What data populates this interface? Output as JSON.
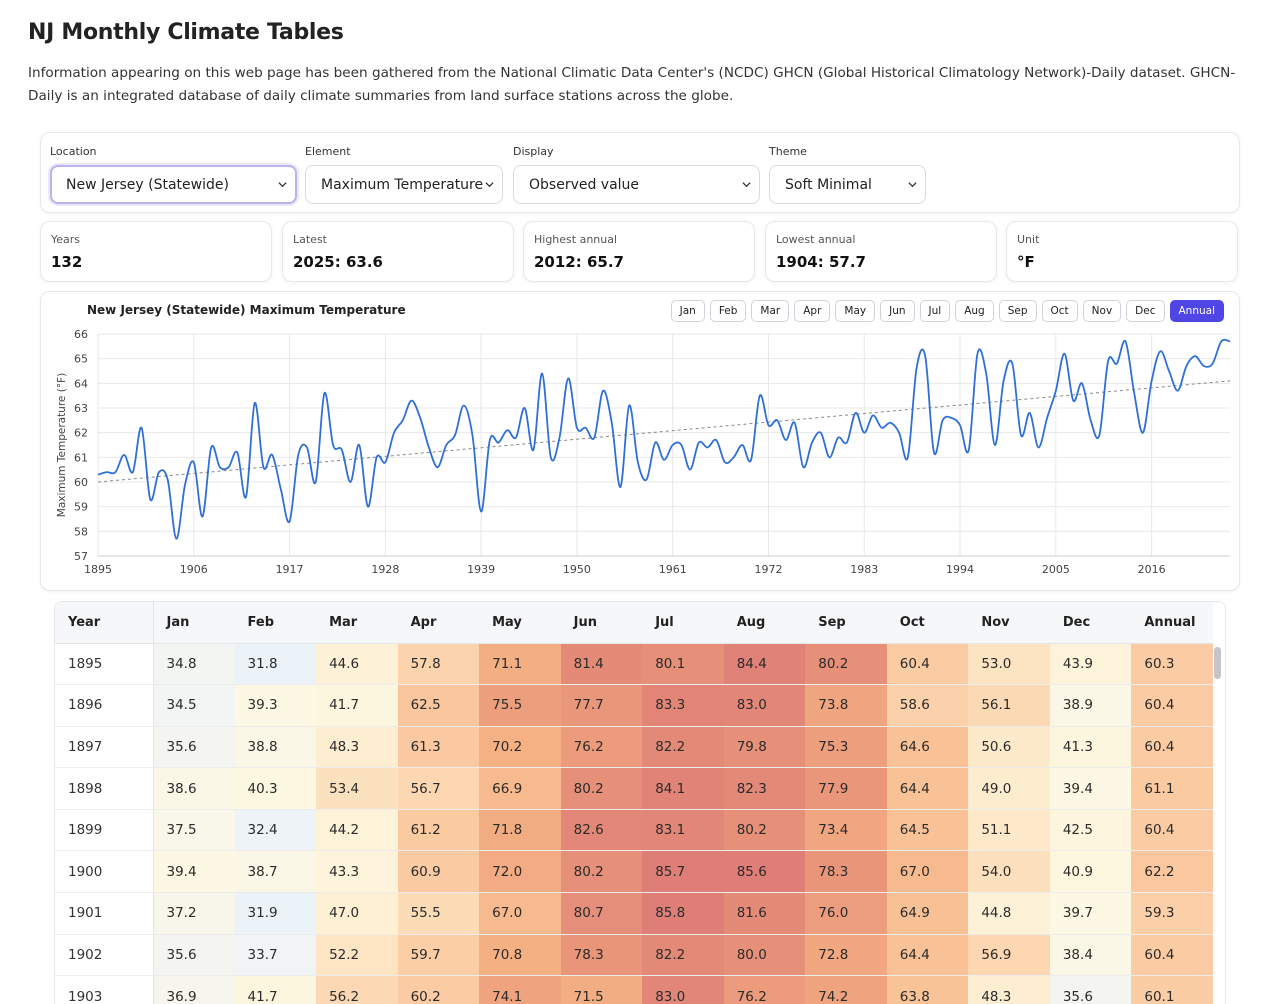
{
  "page": {
    "title": "NJ Monthly Climate Tables",
    "intro": "Information appearing on this web page has been gathered from the National Climatic Data Center's (NCDC) GHCN (Global Historical Climatology Network)-Daily dataset. GHCN-Daily is an integrated database of daily climate summaries from land surface stations across the globe."
  },
  "controls": {
    "location": {
      "label": "Location",
      "value": "New Jersey (Statewide)"
    },
    "element": {
      "label": "Element",
      "value": "Maximum Temperature"
    },
    "display": {
      "label": "Display",
      "value": "Observed value"
    },
    "theme": {
      "label": "Theme",
      "value": "Soft Minimal"
    }
  },
  "stats": [
    {
      "label": "Years",
      "value": "132"
    },
    {
      "label": "Latest",
      "value": "2025: 63.6"
    },
    {
      "label": "Highest annual",
      "value": "2012: 65.7"
    },
    {
      "label": "Lowest annual",
      "value": "1904: 57.7"
    },
    {
      "label": "Unit",
      "value": "°F"
    }
  ],
  "month_tabs": [
    "Jan",
    "Feb",
    "Mar",
    "Apr",
    "May",
    "Jun",
    "Jul",
    "Aug",
    "Sep",
    "Oct",
    "Nov",
    "Dec",
    "Annual"
  ],
  "active_tab": "Annual",
  "chart_data": {
    "type": "line",
    "title": "New Jersey (Statewide) Maximum Temperature",
    "ylabel": "Maximum Temperature (°F)",
    "xlabel": "",
    "xlim": [
      1895,
      2025
    ],
    "ylim": [
      57,
      66
    ],
    "x_ticks": [
      1895,
      1906,
      1917,
      1928,
      1939,
      1950,
      1961,
      1972,
      1983,
      1994,
      2005,
      2016
    ],
    "y_ticks": [
      57,
      58,
      59,
      60,
      61,
      62,
      63,
      64,
      65,
      66
    ],
    "grid": true,
    "line_color": "#2f6fd6",
    "trend_color": "#888888",
    "series": [
      {
        "x": [
          1895,
          1896,
          1897,
          1898,
          1899,
          1900,
          1901,
          1902,
          1903,
          1904,
          1905,
          1906,
          1907,
          1908,
          1909,
          1910,
          1911,
          1912,
          1913,
          1914,
          1915,
          1916,
          1917,
          1918,
          1919,
          1920,
          1921,
          1922,
          1923,
          1924,
          1925,
          1926,
          1927,
          1928,
          1929,
          1930,
          1931,
          1932,
          1933,
          1934,
          1935,
          1936,
          1937,
          1938,
          1939,
          1940,
          1941,
          1942,
          1943,
          1944,
          1945,
          1946,
          1947,
          1948,
          1949,
          1950,
          1951,
          1952,
          1953,
          1954,
          1955,
          1956,
          1957,
          1958,
          1959,
          1960,
          1961,
          1962,
          1963,
          1964,
          1965,
          1966,
          1967,
          1968,
          1969,
          1970,
          1971,
          1972,
          1973,
          1974,
          1975,
          1976,
          1977,
          1978,
          1979,
          1980,
          1981,
          1982,
          1983,
          1984,
          1985,
          1986,
          1987,
          1988,
          1989,
          1990,
          1991,
          1992,
          1993,
          1994,
          1995,
          1996,
          1997,
          1998,
          1999,
          2000,
          2001,
          2002,
          2003,
          2004,
          2005,
          2006,
          2007,
          2008,
          2009,
          2010,
          2011,
          2012,
          2013,
          2014,
          2015,
          2016,
          2017,
          2018,
          2019,
          2020,
          2021,
          2022,
          2023,
          2024,
          2025
        ],
        "y": [
          60.3,
          60.4,
          60.4,
          61.1,
          60.4,
          62.2,
          59.3,
          60.4,
          60.1,
          57.7,
          59.9,
          60.8,
          58.6,
          61.4,
          60.6,
          60.6,
          61.2,
          59.4,
          63.2,
          60.6,
          61.1,
          59.7,
          58.4,
          61.1,
          61.4,
          60.0,
          63.6,
          61.5,
          61.3,
          60.0,
          61.5,
          59.0,
          61.0,
          60.8,
          62.0,
          62.5,
          63.3,
          62.6,
          61.4,
          60.6,
          61.5,
          61.9,
          63.1,
          61.9,
          58.8,
          61.7,
          61.6,
          62.1,
          61.8,
          63.0,
          61.3,
          64.4,
          61.0,
          61.8,
          64.2,
          62.2,
          62.2,
          61.8,
          63.7,
          62.4,
          59.8,
          63.1,
          60.8,
          60.1,
          61.6,
          60.9,
          61.5,
          61.5,
          60.5,
          61.6,
          61.4,
          61.7,
          60.8,
          61.0,
          61.5,
          60.9,
          63.5,
          62.3,
          62.5,
          61.7,
          62.4,
          60.6,
          61.6,
          62.0,
          61.0,
          61.8,
          61.6,
          62.8,
          62.0,
          62.7,
          62.2,
          62.4,
          62.0,
          61.0,
          64.6,
          65.1,
          61.2,
          62.5,
          62.6,
          62.3,
          61.3,
          65.2,
          64.4,
          61.5,
          64.1,
          64.8,
          61.9,
          62.8,
          61.4,
          62.6,
          63.7,
          65.2,
          63.3,
          64.0,
          62.5,
          61.9,
          64.9,
          64.8,
          65.7,
          63.6,
          62.0,
          64.1,
          65.3,
          64.5,
          63.7,
          64.7,
          65.1,
          64.7,
          64.8,
          65.7,
          65.7
        ],
        "color": "#2f6fd6"
      }
    ],
    "trend": {
      "x": [
        1895,
        2025
      ],
      "y": [
        60.0,
        64.1
      ]
    }
  },
  "table": {
    "headers": [
      "Year",
      "Jan",
      "Feb",
      "Mar",
      "Apr",
      "May",
      "Jun",
      "Jul",
      "Aug",
      "Sep",
      "Oct",
      "Nov",
      "Dec",
      "Annual"
    ],
    "rows": [
      [
        "1895",
        "34.8",
        "31.8",
        "44.6",
        "57.8",
        "71.1",
        "81.4",
        "80.1",
        "84.4",
        "80.2",
        "60.4",
        "53.0",
        "43.9",
        "60.3"
      ],
      [
        "1896",
        "34.5",
        "39.3",
        "41.7",
        "62.5",
        "75.5",
        "77.7",
        "83.3",
        "83.0",
        "73.8",
        "58.6",
        "56.1",
        "38.9",
        "60.4"
      ],
      [
        "1897",
        "35.6",
        "38.8",
        "48.3",
        "61.3",
        "70.2",
        "76.2",
        "82.2",
        "79.8",
        "75.3",
        "64.6",
        "50.6",
        "41.3",
        "60.4"
      ],
      [
        "1898",
        "38.6",
        "40.3",
        "53.4",
        "56.7",
        "66.9",
        "80.2",
        "84.1",
        "82.3",
        "77.9",
        "64.4",
        "49.0",
        "39.4",
        "61.1"
      ],
      [
        "1899",
        "37.5",
        "32.4",
        "44.2",
        "61.2",
        "71.8",
        "82.6",
        "83.1",
        "80.2",
        "73.4",
        "64.5",
        "51.1",
        "42.5",
        "60.4"
      ],
      [
        "1900",
        "39.4",
        "38.7",
        "43.3",
        "60.9",
        "72.0",
        "80.2",
        "85.7",
        "85.6",
        "78.3",
        "67.0",
        "54.0",
        "40.9",
        "62.2"
      ],
      [
        "1901",
        "37.2",
        "31.9",
        "47.0",
        "55.5",
        "67.0",
        "80.7",
        "85.8",
        "81.6",
        "76.0",
        "64.9",
        "44.8",
        "39.7",
        "59.3"
      ],
      [
        "1902",
        "35.6",
        "33.7",
        "52.2",
        "59.7",
        "70.8",
        "78.3",
        "82.2",
        "80.0",
        "72.8",
        "64.4",
        "56.9",
        "38.4",
        "60.4"
      ],
      [
        "1903",
        "36.9",
        "41.7",
        "56.2",
        "60.2",
        "74.1",
        "71.5",
        "83.0",
        "76.2",
        "74.2",
        "63.8",
        "48.3",
        "35.6",
        "60.1"
      ]
    ]
  }
}
